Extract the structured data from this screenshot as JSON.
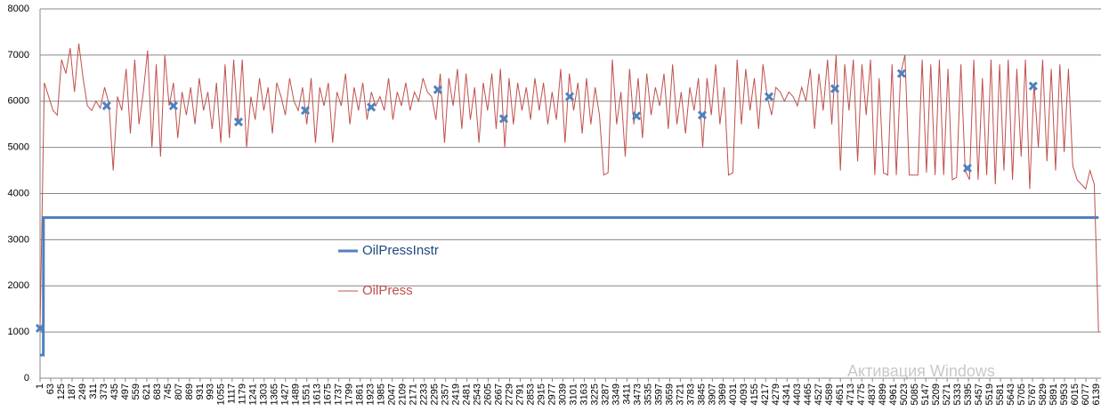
{
  "chart_data": {
    "type": "line",
    "ylim": [
      0,
      8000
    ],
    "yticks": [
      0,
      1000,
      2000,
      3000,
      4000,
      5000,
      6000,
      7000,
      8000
    ],
    "grid": true,
    "xlim": [
      1,
      6165
    ],
    "xticks": [
      1,
      63,
      125,
      187,
      249,
      311,
      373,
      435,
      497,
      559,
      621,
      683,
      745,
      807,
      869,
      931,
      993,
      1055,
      1117,
      1179,
      1241,
      1303,
      1365,
      1427,
      1489,
      1551,
      1613,
      1675,
      1737,
      1799,
      1861,
      1923,
      1985,
      2047,
      2109,
      2171,
      2233,
      2295,
      2357,
      2419,
      2481,
      2543,
      2605,
      2667,
      2729,
      2791,
      2853,
      2915,
      2977,
      3039,
      3101,
      3163,
      3225,
      3287,
      3349,
      3411,
      3473,
      3535,
      3597,
      3659,
      3721,
      3783,
      3845,
      3907,
      3969,
      4031,
      4093,
      4155,
      4217,
      4279,
      4341,
      4403,
      4465,
      4527,
      4589,
      4651,
      4713,
      4775,
      4837,
      4899,
      4961,
      5023,
      5085,
      5147,
      5209,
      5271,
      5333,
      5395,
      5457,
      5519,
      5581,
      5643,
      5705,
      5767,
      5829,
      5891,
      5953,
      6015,
      6077,
      6139
    ],
    "series": [
      {
        "name": "OilPressInstr",
        "color": "#4f81bd",
        "x": [
          1,
          20,
          21,
          6151
        ],
        "values": [
          500,
          500,
          3480,
          3480
        ]
      },
      {
        "name": "OilPress",
        "color": "#c0504d",
        "x": [
          1,
          26,
          51,
          76,
          101,
          126,
          151,
          176,
          201,
          226,
          251,
          276,
          301,
          326,
          351,
          376,
          401,
          426,
          451,
          476,
          501,
          526,
          551,
          576,
          601,
          626,
          651,
          676,
          701,
          726,
          751,
          776,
          801,
          826,
          851,
          876,
          901,
          926,
          951,
          976,
          1001,
          1026,
          1051,
          1076,
          1101,
          1126,
          1151,
          1176,
          1201,
          1226,
          1251,
          1276,
          1301,
          1326,
          1351,
          1376,
          1401,
          1426,
          1451,
          1476,
          1501,
          1526,
          1551,
          1576,
          1601,
          1626,
          1651,
          1676,
          1701,
          1726,
          1751,
          1776,
          1801,
          1826,
          1851,
          1876,
          1901,
          1926,
          1951,
          1976,
          2001,
          2026,
          2051,
          2076,
          2101,
          2126,
          2151,
          2176,
          2201,
          2226,
          2251,
          2276,
          2301,
          2326,
          2351,
          2376,
          2401,
          2426,
          2451,
          2476,
          2501,
          2526,
          2551,
          2576,
          2601,
          2626,
          2651,
          2676,
          2701,
          2726,
          2751,
          2776,
          2801,
          2826,
          2851,
          2876,
          2901,
          2926,
          2951,
          2976,
          3001,
          3026,
          3051,
          3076,
          3101,
          3126,
          3151,
          3176,
          3201,
          3226,
          3251,
          3276,
          3301,
          3326,
          3351,
          3376,
          3401,
          3426,
          3451,
          3476,
          3501,
          3526,
          3551,
          3576,
          3601,
          3626,
          3651,
          3676,
          3701,
          3726,
          3751,
          3776,
          3801,
          3826,
          3851,
          3876,
          3901,
          3926,
          3951,
          3976,
          4001,
          4026,
          4051,
          4076,
          4101,
          4126,
          4151,
          4176,
          4201,
          4226,
          4251,
          4276,
          4301,
          4326,
          4351,
          4376,
          4401,
          4426,
          4451,
          4476,
          4501,
          4526,
          4551,
          4576,
          4601,
          4626,
          4651,
          4676,
          4701,
          4726,
          4751,
          4776,
          4801,
          4826,
          4851,
          4876,
          4901,
          4926,
          4951,
          4976,
          5001,
          5026,
          5051,
          5076,
          5101,
          5126,
          5151,
          5176,
          5201,
          5226,
          5251,
          5276,
          5301,
          5326,
          5351,
          5376,
          5401,
          5426,
          5451,
          5476,
          5501,
          5526,
          5551,
          5576,
          5601,
          5626,
          5651,
          5676,
          5701,
          5726,
          5751,
          5776,
          5801,
          5826,
          5851,
          5876,
          5901,
          5926,
          5951,
          5976,
          6001,
          6026,
          6051,
          6076,
          6101,
          6126,
          6151
        ],
        "values": [
          1080,
          6400,
          6100,
          5800,
          5700,
          6900,
          6600,
          7150,
          6200,
          7250,
          6500,
          5900,
          5800,
          6000,
          5850,
          6300,
          5950,
          4500,
          6100,
          5800,
          6700,
          5300,
          6900,
          5500,
          6200,
          7100,
          5000,
          6800,
          4800,
          7000,
          5900,
          6400,
          5200,
          6200,
          5700,
          6300,
          5500,
          6500,
          5800,
          6200,
          5400,
          6400,
          5100,
          6800,
          5200,
          6900,
          5500,
          6900,
          5000,
          6100,
          5600,
          6500,
          5800,
          6300,
          5300,
          6400,
          6100,
          5700,
          6500,
          6000,
          5800,
          6300,
          5500,
          6500,
          5100,
          6300,
          5900,
          6400,
          5100,
          6200,
          5900,
          6600,
          5500,
          6300,
          5800,
          6400,
          5600,
          6200,
          5900,
          6100,
          5800,
          6500,
          5600,
          6200,
          5900,
          6400,
          5800,
          6200,
          6000,
          6500,
          6200,
          6100,
          5600,
          6600,
          5100,
          6500,
          5900,
          6700,
          5400,
          6600,
          5600,
          6300,
          5100,
          6400,
          5800,
          6600,
          5400,
          6700,
          5000,
          6500,
          5500,
          6400,
          5800,
          6300,
          5600,
          6500,
          5800,
          6400,
          5500,
          6200,
          5600,
          6700,
          5100,
          6600,
          5800,
          6400,
          5300,
          6500,
          5500,
          6300,
          5700,
          4400,
          4450,
          6900,
          5500,
          6200,
          4800,
          6700,
          5500,
          6500,
          5200,
          6600,
          5700,
          6300,
          5900,
          6600,
          5400,
          6800,
          5500,
          6200,
          5300,
          6300,
          5800,
          6500,
          5000,
          6500,
          5700,
          6800,
          5500,
          6300,
          4400,
          4450,
          6900,
          5500,
          6700,
          5800,
          6500,
          5400,
          6800,
          6100,
          5700,
          6300,
          6200,
          6000,
          6200,
          6100,
          5900,
          6300,
          6000,
          6700,
          5400,
          6600,
          5800,
          6900,
          5500,
          7000,
          4500,
          6800,
          5800,
          6900,
          4700,
          6800,
          5700,
          6900,
          4400,
          6500,
          4450,
          4400,
          6800,
          4400,
          6600,
          7000,
          4400,
          4400,
          4400,
          6900,
          4450,
          6800,
          4400,
          6900,
          4400,
          6700,
          4300,
          4350,
          6800,
          4500,
          4300,
          6900,
          4300,
          6500,
          4400,
          6900,
          4200,
          6800,
          4500,
          6900,
          4300,
          6700,
          4800,
          6900,
          4100,
          6400,
          5000,
          6900,
          4700,
          6700,
          4500,
          6800,
          4900,
          6700,
          4600,
          4300,
          4200,
          4100,
          4500,
          4200,
          1000
        ],
        "marker_x": [
          1,
          388,
          776,
          1154,
          1542,
          1925,
          2312,
          2695,
          3078,
          3466,
          3848,
          4236,
          4619,
          5006,
          5389,
          5771
        ],
        "marker_values": [
          1080,
          5900,
          5900,
          5550,
          5800,
          5870,
          6250,
          5620,
          6100,
          5680,
          5700,
          6100,
          6270,
          6600,
          4550,
          6330
        ]
      }
    ],
    "watermark": "Активация Windows"
  }
}
